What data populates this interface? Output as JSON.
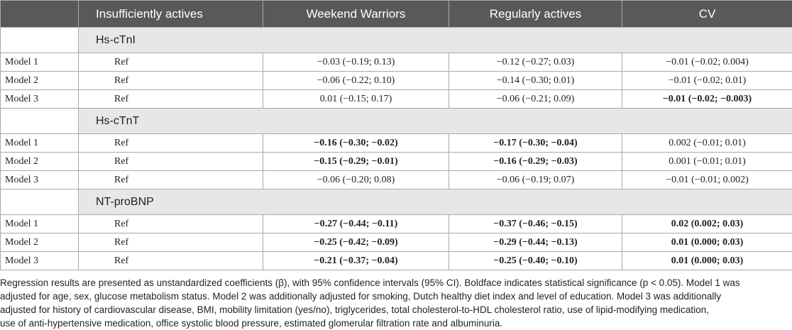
{
  "table": {
    "headers": [
      "",
      "Insufficiently actives",
      "Weekend Warriors",
      "Regularly actives",
      "CV"
    ],
    "sections": [
      {
        "label": "Hs-cTnI",
        "rows": [
          {
            "model": "Model 1",
            "ref": "Ref",
            "ww": "−0.03 (−0.19; 0.13)",
            "ra": "−0.12 (−0.27; 0.03)",
            "cv": "−0.01 (−0.02; 0.004)"
          },
          {
            "model": "Model 2",
            "ref": "Ref",
            "ww": "−0.06 (−0.22; 0.10)",
            "ra": "−0.14 (−0.30; 0.01)",
            "cv": "−0.01 (−0.02; 0.01)"
          },
          {
            "model": "Model 3",
            "ref": "Ref",
            "ww": "0.01 (−0.15; 0.17)",
            "ra": "−0.06 (−0.21; 0.09)",
            "cv": "−0.01 (−0.02; −0.003)"
          }
        ]
      },
      {
        "label": "Hs-cTnT",
        "rows": [
          {
            "model": "Model 1",
            "ref": "Ref",
            "ww": "−0.16 (−0.30; −0.02)",
            "ra": "−0.17 (−0.30; −0.04)",
            "cv": "0.002 (−0.01; 0.01)"
          },
          {
            "model": "Model 2",
            "ref": "Ref",
            "ww": "−0.15 (−0.29; −0.01)",
            "ra": "−0.16 (−0.29; −0.03)",
            "cv": "0.001 (−0.01; 0.01)"
          },
          {
            "model": "Model 3",
            "ref": "Ref",
            "ww": "−0.06 (−0.20; 0.08)",
            "ra": "−0.06 (−0.19; 0.07)",
            "cv": "−0.01 (−0.01; 0.002)"
          }
        ]
      },
      {
        "label": "NT-proBNP",
        "rows": [
          {
            "model": "Model 1",
            "ref": "Ref",
            "ww": "−0.27 (−0.44; −0.11)",
            "ra": "−0.37 (−0.46; −0.15)",
            "cv": "0.02 (0.002; 0.03)"
          },
          {
            "model": "Model 2",
            "ref": "Ref",
            "ww": "−0.25 (−0.42; −0.09)",
            "ra": "−0.29 (−0.44; −0.13)",
            "cv": "0.01 (0.000; 0.03)"
          },
          {
            "model": "Model 3",
            "ref": "Ref",
            "ww": "−0.21 (−0.37; −0.04)",
            "ra": "−0.25 (−0.40; −0.10)",
            "cv": "0.01 (0.000; 0.03)"
          }
        ]
      }
    ],
    "bold_cells": [
      [
        [],
        [],
        [
          "cv"
        ]
      ],
      [
        [
          "ww",
          "ra"
        ],
        [
          "ww",
          "ra"
        ],
        []
      ],
      [
        [
          "ww",
          "ra",
          "cv"
        ],
        [
          "ww",
          "ra",
          "cv"
        ],
        [
          "ww",
          "ra",
          "cv"
        ]
      ]
    ]
  },
  "footnote": {
    "lines": [
      "Regression results are presented as unstandardized coefficients (β), with 95% confidence intervals (95% CI). Boldface indicates statistical significance (p < 0.05). Model 1 was",
      "adjusted for age, sex, glucose metabolism status. Model 2 was additionally adjusted for smoking, Dutch healthy diet index and level of education. Model 3 was additionally",
      "adjusted for history of cardiovascular disease, BMI, mobility limitation (yes/no), triglycerides, total cholesterol-to-HDL cholesterol ratio, use of lipid-modifying medication,",
      "use of anti-hypertensive medication, office systolic blood pressure, estimated glomerular filtration rate and albuminuria."
    ]
  },
  "colors": {
    "header_bg": "#58595b",
    "section_bg": "#e6e7e8",
    "border": "#a7a9ac",
    "text": "#231f20"
  }
}
